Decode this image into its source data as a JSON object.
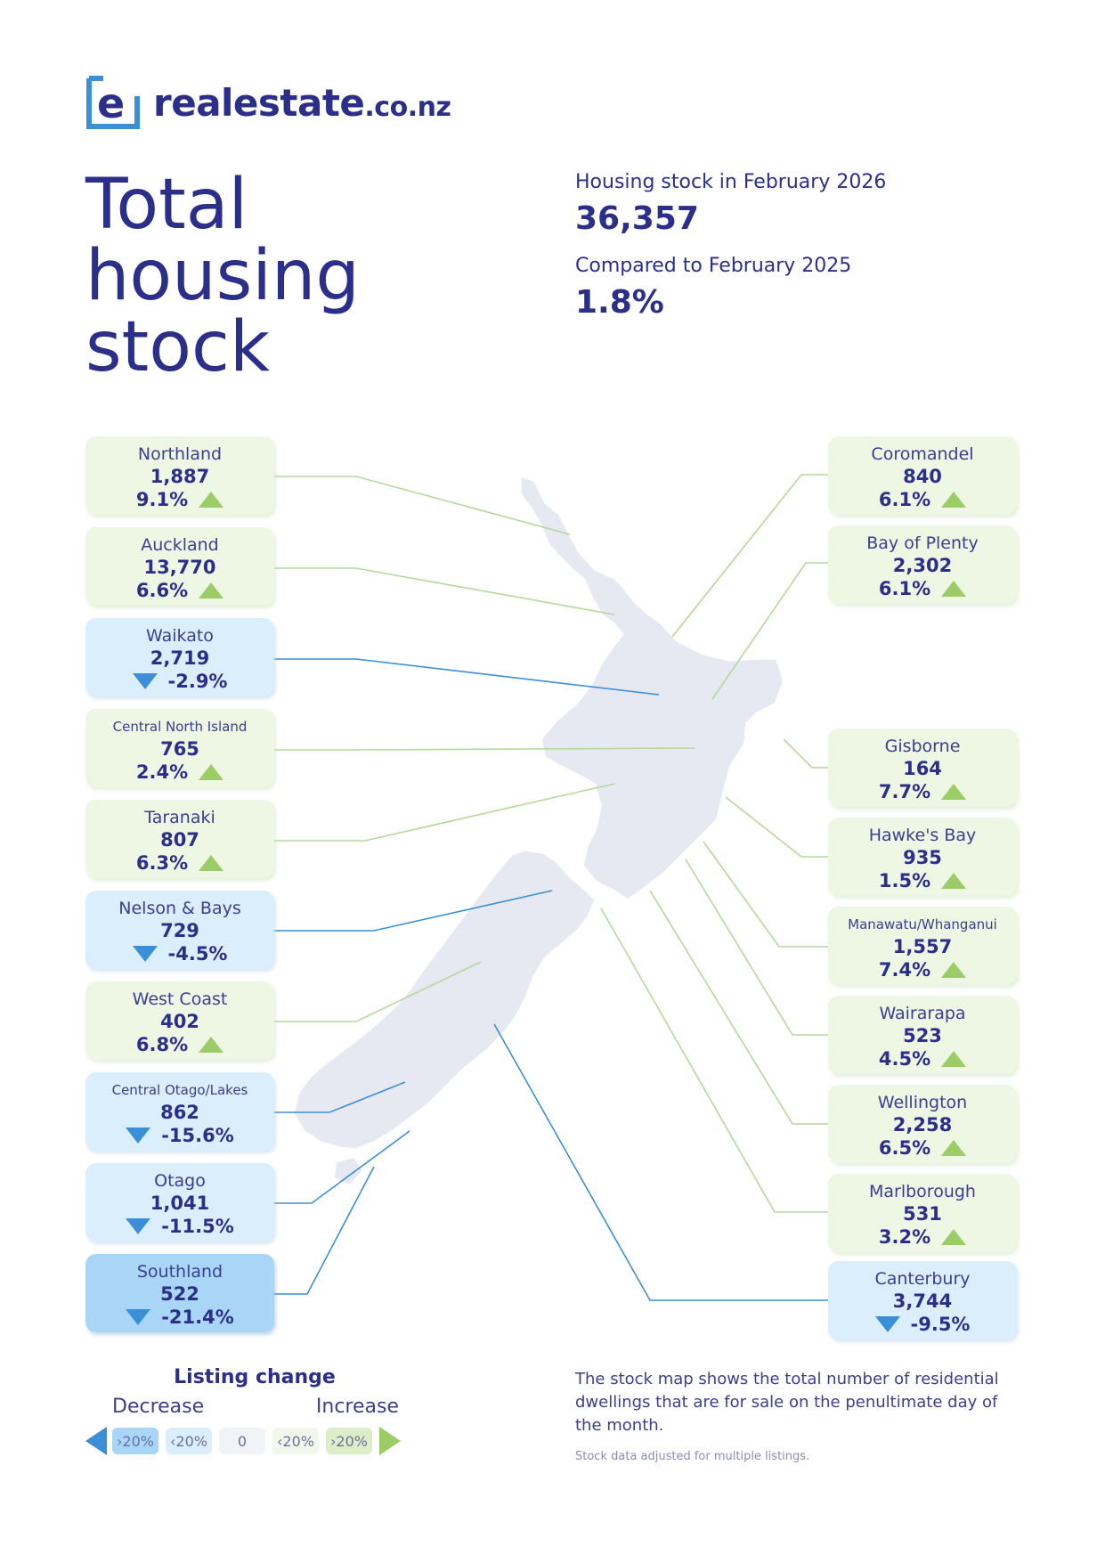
{
  "brand": {
    "name": "realestate",
    "tld": ".co.nz"
  },
  "title": [
    "Total",
    "housing",
    "stock"
  ],
  "summary": {
    "stock_label": "Housing stock in February 2026",
    "stock_value": "36,357",
    "compare_label": "Compared to February 2025",
    "compare_value": "1.8%"
  },
  "regions": [
    {
      "name": "Northland",
      "count": "1,887",
      "change": "9.1%",
      "trend": "up"
    },
    {
      "name": "Auckland",
      "count": "13,770",
      "change": "6.6%",
      "trend": "up"
    },
    {
      "name": "Waikato",
      "count": "2,719",
      "change": "-2.9%",
      "trend": "down"
    },
    {
      "name": "Central North Island",
      "count": "765",
      "change": "2.4%",
      "trend": "up"
    },
    {
      "name": "Taranaki",
      "count": "807",
      "change": "6.3%",
      "trend": "up"
    },
    {
      "name": "Nelson & Bays",
      "count": "729",
      "change": "-4.5%",
      "trend": "down"
    },
    {
      "name": "West Coast",
      "count": "402",
      "change": "6.8%",
      "trend": "up"
    },
    {
      "name": "Central Otago/Lakes",
      "count": "862",
      "change": "-15.6%",
      "trend": "down"
    },
    {
      "name": "Otago",
      "count": "1,041",
      "change": "-11.5%",
      "trend": "down"
    },
    {
      "name": "Southland",
      "count": "522",
      "change": "-21.4%",
      "trend": "down-strong"
    },
    {
      "name": "Coromandel",
      "count": "840",
      "change": "6.1%",
      "trend": "up"
    },
    {
      "name": "Bay of Plenty",
      "count": "2,302",
      "change": "6.1%",
      "trend": "up"
    },
    {
      "name": "Gisborne",
      "count": "164",
      "change": "7.7%",
      "trend": "up"
    },
    {
      "name": "Hawke's Bay",
      "count": "935",
      "change": "1.5%",
      "trend": "up"
    },
    {
      "name": "Manawatu/Whanganui",
      "count": "1,557",
      "change": "7.4%",
      "trend": "up"
    },
    {
      "name": "Wairarapa",
      "count": "523",
      "change": "4.5%",
      "trend": "up"
    },
    {
      "name": "Wellington",
      "count": "2,258",
      "change": "6.5%",
      "trend": "up"
    },
    {
      "name": "Marlborough",
      "count": "531",
      "change": "3.2%",
      "trend": "up"
    },
    {
      "name": "Canterbury",
      "count": "3,744",
      "change": "-9.5%",
      "trend": "down"
    }
  ],
  "legend": {
    "title": "Listing change",
    "decrease": "Decrease",
    "increase": "Increase",
    "scale": [
      "›20%",
      "‹20%",
      "0",
      "‹20%",
      "›20%"
    ]
  },
  "footnote": {
    "main": "The stock map shows the total number of residential dwellings that are for sale on the penultimate day of the month.",
    "small": "Stock data adjusted for multiple listings."
  },
  "colors": {
    "navy": "#2b2f8a",
    "up": "#9ccc65",
    "down": "#3b8fd6",
    "up_bg": "#eef6e4",
    "down_bg": "#dbeefb",
    "down_strong_bg": "#a9d5f6"
  }
}
